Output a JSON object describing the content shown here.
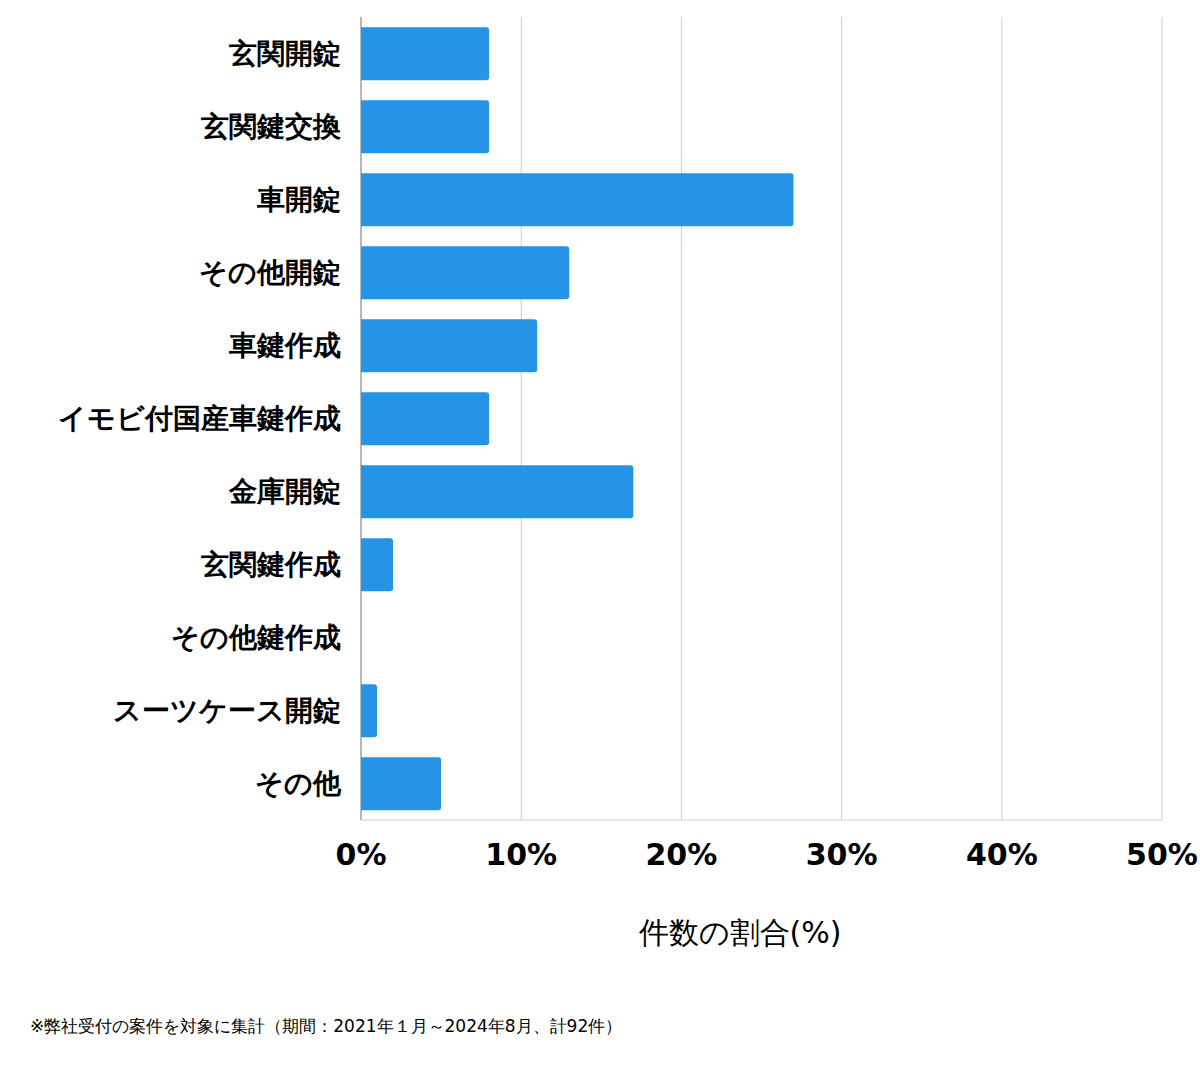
{
  "chart_data": {
    "type": "bar",
    "orientation": "horizontal",
    "categories": [
      "玄関開錠",
      "玄関鍵交換",
      "車開錠",
      "その他開錠",
      "車鍵作成",
      "イモビ付国産車鍵作成",
      "金庫開錠",
      "玄関鍵作成",
      "その他鍵作成",
      "スーツケース開錠",
      "その他"
    ],
    "values": [
      8,
      8,
      27,
      13,
      11,
      8,
      17,
      2,
      0,
      1,
      5
    ],
    "color": "#2594e6",
    "xlim": [
      0,
      50
    ],
    "xticks": [
      {
        "value": 0,
        "label": "0%"
      },
      {
        "value": 10,
        "label": "10%"
      },
      {
        "value": 20,
        "label": "20%"
      },
      {
        "value": 30,
        "label": "30%"
      },
      {
        "value": 40,
        "label": "40%"
      },
      {
        "value": 50,
        "label": "50%"
      }
    ],
    "x_label": "件数の割合(%)",
    "note": "※弊社受付の案件を対象に集計（期間：2021年１月～2024年8月、計92件）",
    "grid": true
  }
}
